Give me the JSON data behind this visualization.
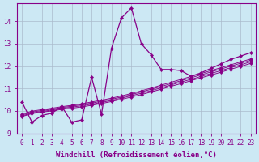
{
  "xlabel": "Windchill (Refroidissement éolien,°C)",
  "xlim": [
    -0.5,
    23.5
  ],
  "ylim": [
    9.0,
    14.8
  ],
  "bg_color": "#cce8f4",
  "line_color": "#880088",
  "grid_color": "#aabbcc",
  "xticks": [
    0,
    1,
    2,
    3,
    4,
    5,
    6,
    7,
    8,
    9,
    10,
    11,
    12,
    13,
    14,
    15,
    16,
    17,
    18,
    19,
    20,
    21,
    22,
    23
  ],
  "yticks": [
    9,
    10,
    11,
    12,
    13,
    14
  ],
  "main_line": {
    "x": [
      0,
      1,
      2,
      3,
      4,
      5,
      6,
      7,
      8,
      9,
      10,
      11,
      12,
      13,
      14,
      15,
      16,
      17,
      18,
      19,
      20,
      21,
      22,
      23
    ],
    "y": [
      10.4,
      9.5,
      9.8,
      9.9,
      10.2,
      9.5,
      9.6,
      11.5,
      9.85,
      12.8,
      14.15,
      14.6,
      13.0,
      12.5,
      11.85,
      11.85,
      11.8,
      11.55,
      11.7,
      11.9,
      12.1,
      12.3,
      12.45,
      12.6
    ]
  },
  "straight_lines": [
    {
      "x": [
        0,
        1,
        2,
        3,
        4,
        5,
        6,
        7,
        8,
        9,
        10,
        11,
        12,
        13,
        14,
        15,
        16,
        17,
        18,
        19,
        20,
        21,
        22,
        23
      ],
      "y": [
        9.75,
        9.88,
        9.95,
        10.0,
        10.07,
        10.12,
        10.18,
        10.25,
        10.33,
        10.42,
        10.52,
        10.62,
        10.73,
        10.85,
        10.97,
        11.1,
        11.22,
        11.35,
        11.48,
        11.6,
        11.73,
        11.86,
        11.99,
        12.12
      ]
    },
    {
      "x": [
        0,
        1,
        2,
        3,
        4,
        5,
        6,
        7,
        8,
        9,
        10,
        11,
        12,
        13,
        14,
        15,
        16,
        17,
        18,
        19,
        20,
        21,
        22,
        23
      ],
      "y": [
        9.78,
        9.91,
        9.98,
        10.04,
        10.11,
        10.17,
        10.23,
        10.3,
        10.38,
        10.47,
        10.57,
        10.68,
        10.79,
        10.91,
        11.03,
        11.16,
        11.29,
        11.41,
        11.54,
        11.67,
        11.8,
        11.93,
        12.06,
        12.19
      ]
    },
    {
      "x": [
        0,
        1,
        2,
        3,
        4,
        5,
        6,
        7,
        8,
        9,
        10,
        11,
        12,
        13,
        14,
        15,
        16,
        17,
        18,
        19,
        20,
        21,
        22,
        23
      ],
      "y": [
        9.82,
        9.95,
        10.02,
        10.08,
        10.15,
        10.21,
        10.28,
        10.35,
        10.43,
        10.52,
        10.62,
        10.73,
        10.85,
        10.97,
        11.09,
        11.22,
        11.35,
        11.48,
        11.61,
        11.74,
        11.87,
        12.0,
        12.13,
        12.26
      ]
    },
    {
      "x": [
        0,
        1,
        2,
        3,
        4,
        5,
        6,
        7,
        8,
        9,
        10,
        11,
        12,
        13,
        14,
        15,
        16,
        17,
        18,
        19,
        20,
        21,
        22,
        23
      ],
      "y": [
        9.86,
        9.99,
        10.06,
        10.12,
        10.19,
        10.25,
        10.32,
        10.4,
        10.48,
        10.57,
        10.67,
        10.78,
        10.9,
        11.02,
        11.15,
        11.28,
        11.41,
        11.54,
        11.67,
        11.8,
        11.93,
        12.06,
        12.19,
        12.32
      ]
    }
  ],
  "tick_fontsize": 5.5,
  "label_fontsize": 6.5,
  "marker": "D",
  "markersize": 2.2,
  "linewidth": 0.9
}
